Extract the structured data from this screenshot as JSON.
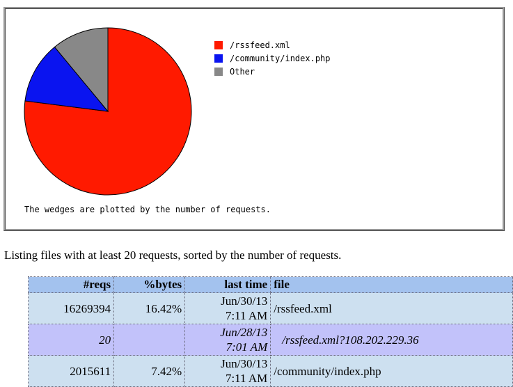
{
  "chart_data": {
    "type": "pie",
    "categories": [
      "/rssfeed.xml",
      "/community/index.php",
      "Other"
    ],
    "values": [
      77,
      12,
      11
    ],
    "colors": [
      "#ff1a00",
      "#0a14f0",
      "#888888"
    ],
    "caption": "The wedges are plotted by the number of requests."
  },
  "listing_note": "Listing files with at least 20 requests, sorted by the number of requests.",
  "table": {
    "header": [
      "#reqs",
      "%bytes",
      "last time",
      "file"
    ],
    "rows": [
      [
        16269394,
        "16.42%",
        [
          "Jun/30/13",
          "7:11 AM"
        ],
        "/rssfeed.xml"
      ],
      [
        20,
        null,
        [
          "Jun/28/13",
          "7:01 AM"
        ],
        "/rssfeed.xml?108.202.229.36"
      ],
      [
        2015611,
        "7.42%",
        [
          "Jun/30/13",
          "7:11 AM"
        ],
        "/community/index.php"
      ]
    ]
  }
}
